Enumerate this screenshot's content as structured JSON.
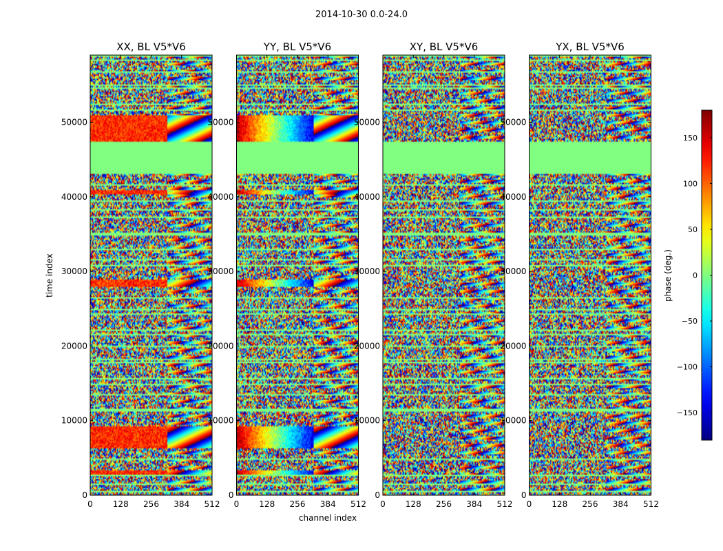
{
  "figure": {
    "suptitle": "2014-10-30 0.0-24.0",
    "xlabel": "channel index",
    "ylabel": "time index"
  },
  "chart_data": {
    "type": "heatmap",
    "colormap": "jet",
    "x": {
      "range": [
        0,
        512
      ],
      "ticks": [
        0,
        128,
        256,
        384,
        512
      ],
      "label": "channel index"
    },
    "y": {
      "range": [
        0,
        59000
      ],
      "ticks": [
        0,
        10000,
        20000,
        30000,
        40000,
        50000
      ],
      "label": "time index"
    },
    "panels": [
      {
        "title": "XX, BL V5*V6",
        "pattern": "XX"
      },
      {
        "title": "YY, BL V5*V6",
        "pattern": "YY"
      },
      {
        "title": "XY, BL V5*V6",
        "pattern": "XY"
      },
      {
        "title": "YX, BL V5*V6",
        "pattern": "YX"
      }
    ],
    "colorbar": {
      "label": "phase (deg.)",
      "range": [
        -180,
        180
      ],
      "ticks": [
        -150,
        -100,
        -50,
        0,
        50,
        100,
        150
      ],
      "tick_labels": [
        "−150",
        "−100",
        "−50",
        "0",
        "50",
        "100",
        "150"
      ]
    },
    "flagged_time_ranges": [
      [
        43100,
        47300
      ]
    ],
    "coherent_time_bands": [
      [
        47300,
        51000
      ],
      [
        40300,
        41000
      ],
      [
        27900,
        28900
      ],
      [
        6200,
        8800
      ],
      [
        8900,
        9300
      ],
      [
        2700,
        3300
      ]
    ]
  },
  "colors": {
    "flagged": "#80ff80",
    "frame": "#000000"
  }
}
